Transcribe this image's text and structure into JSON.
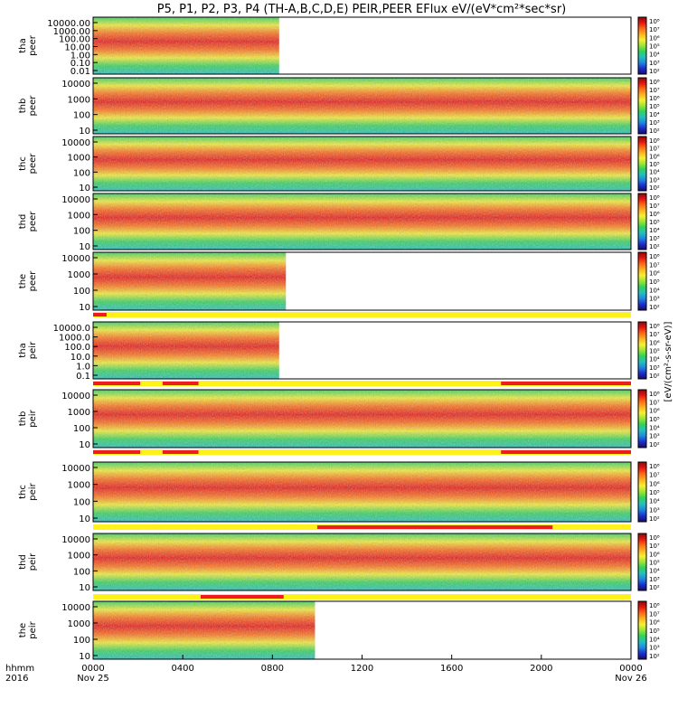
{
  "chart_data": {
    "type": "heatmap",
    "title": "P5, P1, P2, P3, P4 (TH-A,B,C,D,E) PEIR,PEER EFlux eV/(eV*cm²*sec*sr)",
    "colorbar_unit_label": "[eV/(cm²-s-sr-eV)]",
    "x_axis": {
      "label_rows": [
        "hhmm",
        "2016"
      ],
      "tick_labels": [
        "0000",
        "0400",
        "0800",
        "1200",
        "1600",
        "2000",
        "0000"
      ],
      "tick_hours": [
        0,
        4,
        8,
        12,
        16,
        20,
        24
      ],
      "date_labels": [
        {
          "hour": 0,
          "text": "Nov 25"
        },
        {
          "hour": 24,
          "text": "Nov 26"
        }
      ],
      "range_hours": [
        0,
        24
      ]
    },
    "panels": [
      {
        "label": "tha\npeer",
        "ytick_labels": [
          "10000.00",
          "1000.00",
          "100.00",
          "10.00",
          "1.00",
          "0.10",
          "0.01"
        ],
        "ylim": [
          0.01,
          20000
        ],
        "log": true,
        "data_end_hour": 8.3,
        "bar": null
      },
      {
        "label": "thb\npeer",
        "ytick_labels": [
          "10000",
          "1000",
          "100",
          "10"
        ],
        "ylim": [
          7,
          20000
        ],
        "log": true,
        "data_end_hour": 24,
        "bar": null
      },
      {
        "label": "thc\npeer",
        "ytick_labels": [
          "10000",
          "1000",
          "100",
          "10"
        ],
        "ylim": [
          7,
          20000
        ],
        "log": true,
        "data_end_hour": 24,
        "bar": null
      },
      {
        "label": "thd\npeer",
        "ytick_labels": [
          "10000",
          "1000",
          "100",
          "10"
        ],
        "ylim": [
          7,
          20000
        ],
        "log": true,
        "data_end_hour": 24,
        "bar": null
      },
      {
        "label": "the\npeer",
        "ytick_labels": [
          "10000",
          "1000",
          "100",
          "10"
        ],
        "ylim": [
          7,
          20000
        ],
        "log": true,
        "data_end_hour": 8.6,
        "bar": {
          "red_intervals": [
            [
              0,
              0.6
            ]
          ]
        }
      },
      {
        "label": "tha\npeir",
        "ytick_labels": [
          "10000.0",
          "1000.0",
          "100.0",
          "10.0",
          "1.0",
          "0.1"
        ],
        "ylim": [
          0.1,
          20000
        ],
        "log": true,
        "data_end_hour": 8.3,
        "bar": {
          "red_intervals": [
            [
              0,
              2.1
            ],
            [
              3.1,
              4.7
            ],
            [
              18.2,
              24
            ]
          ]
        }
      },
      {
        "label": "thb\npeir",
        "ytick_labels": [
          "10000",
          "1000",
          "100",
          "10"
        ],
        "ylim": [
          7,
          20000
        ],
        "log": true,
        "data_end_hour": 24,
        "bar": {
          "red_intervals": [
            [
              0,
              2.1
            ],
            [
              3.1,
              4.7
            ],
            [
              18.2,
              24
            ]
          ]
        }
      },
      {
        "label": "thc\npeir",
        "ytick_labels": [
          "10000",
          "1000",
          "100",
          "10"
        ],
        "ylim": [
          7,
          20000
        ],
        "log": true,
        "data_end_hour": 24,
        "bar": {
          "red_intervals": [
            [
              10,
              20.5
            ]
          ]
        }
      },
      {
        "label": "thd\npeir",
        "ytick_labels": [
          "10000",
          "1000",
          "100",
          "10"
        ],
        "ylim": [
          7,
          20000
        ],
        "log": true,
        "data_end_hour": 24,
        "bar": {
          "red_intervals": [
            [
              4.8,
              8.5
            ]
          ]
        }
      },
      {
        "label": "the\npeir",
        "ytick_labels": [
          "10000",
          "1000",
          "100",
          "10"
        ],
        "ylim": [
          7,
          20000
        ],
        "log": true,
        "data_end_hour": 9.9,
        "bar": null
      }
    ],
    "colorbar_ticks": [
      "10⁸",
      "10⁷",
      "10⁶",
      "10⁵",
      "10⁴",
      "10³",
      "10²"
    ],
    "colorscale": [
      "#1a0a6b",
      "#1a2fd0",
      "#1e88e0",
      "#22c0c0",
      "#2ed35a",
      "#9ae632",
      "#f5f032",
      "#ffb21e",
      "#ff6a14",
      "#e81410",
      "#8a0a0a"
    ],
    "bar_colors": {
      "red": "#ee1c1c",
      "yellow": "#fff21a"
    }
  }
}
